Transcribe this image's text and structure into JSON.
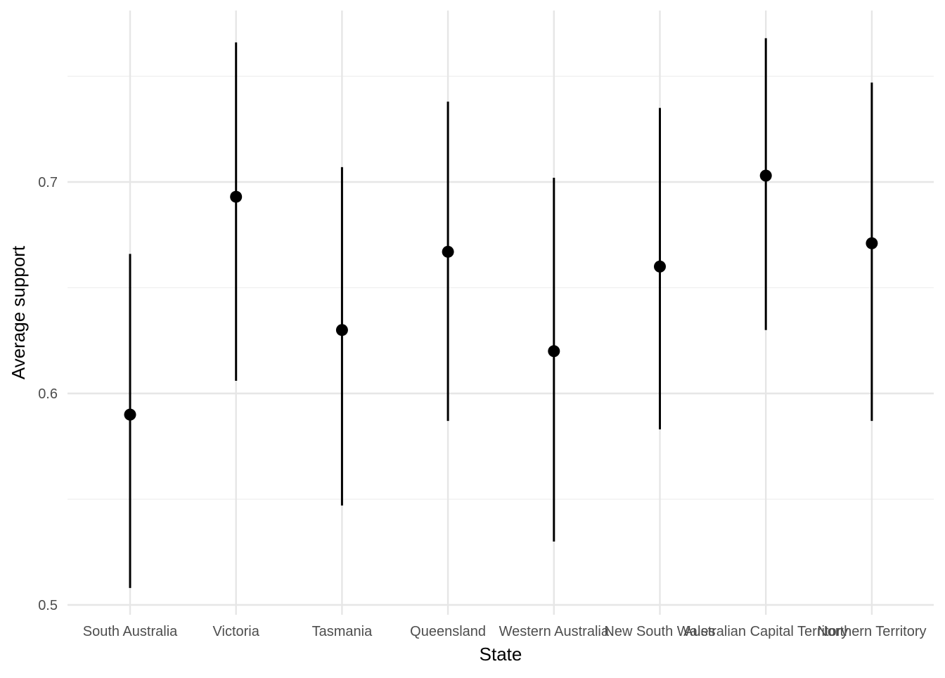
{
  "chart_data": {
    "type": "scatter",
    "subtype": "pointrange",
    "title": "",
    "xlabel": "State",
    "ylabel": "Average support",
    "categories": [
      "South Australia",
      "Victoria",
      "Tasmania",
      "Queensland",
      "Western Australia",
      "New South Wales",
      "Australian Capital Territory",
      "Northern Territory"
    ],
    "series": [
      {
        "values": [
          0.59,
          0.693,
          0.63,
          0.667,
          0.62,
          0.66,
          0.703,
          0.671
        ],
        "lower": [
          0.508,
          0.606,
          0.547,
          0.587,
          0.53,
          0.583,
          0.63,
          0.587
        ],
        "upper": [
          0.666,
          0.766,
          0.707,
          0.738,
          0.702,
          0.735,
          0.768,
          0.747
        ]
      }
    ],
    "ylim": [
      0.5,
      0.78
    ],
    "yticks": [
      0.5,
      0.6,
      0.7
    ],
    "yticks_labels": [
      "0.5",
      "0.6",
      "0.7"
    ],
    "grid": true,
    "theme": "minimal",
    "colors": {
      "point": "#000000",
      "errorbar": "#000000",
      "grid_major": "#e6e6e6",
      "grid_minor": "#efefef",
      "tick_text": "#4d4d4d",
      "axis_title": "#000000"
    }
  }
}
